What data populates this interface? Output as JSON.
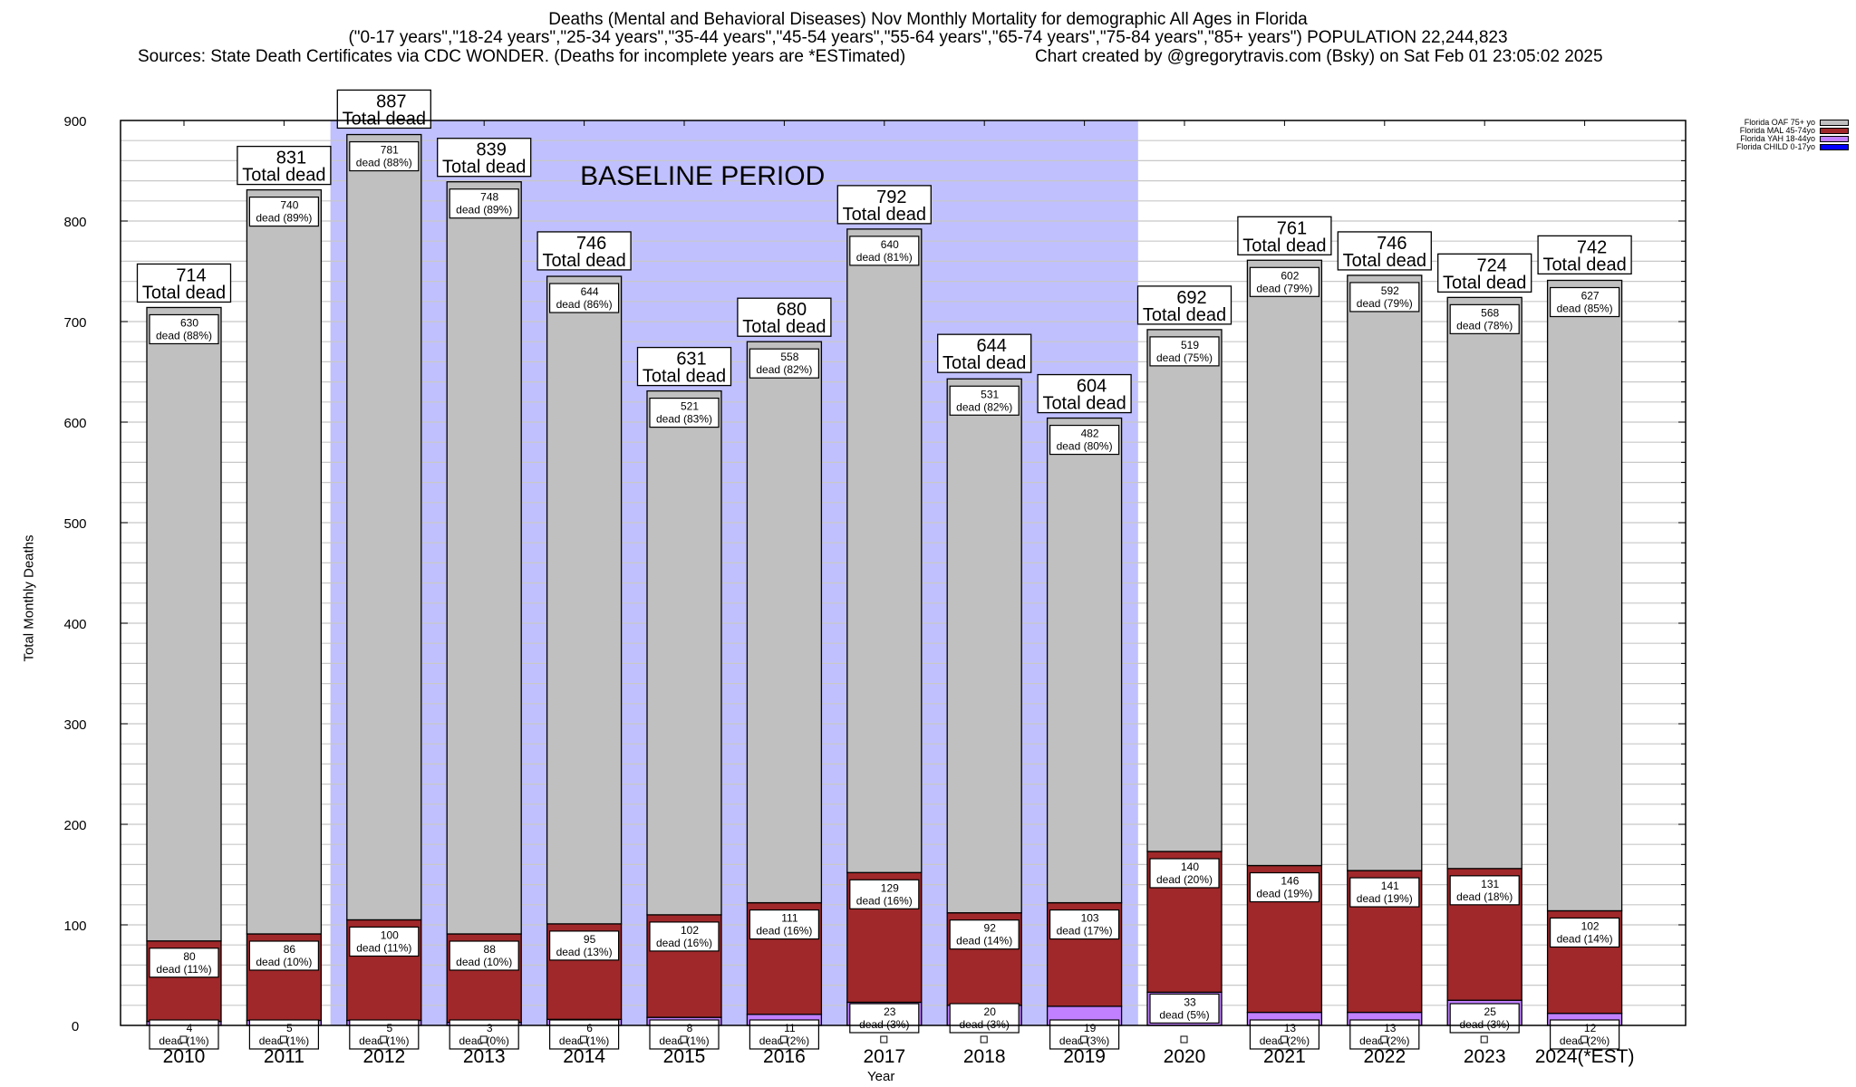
{
  "chart_data": {
    "type": "bar",
    "stacked": true,
    "title": "Deaths (Mental and Behavioral Diseases) Nov Monthly Mortality for demographic All Ages in Florida",
    "subtitle": "(\"0-17 years\",\"18-24 years\",\"25-34 years\",\"35-44 years\",\"45-54 years\",\"55-64 years\",\"65-74 years\",\"75-84 years\",\"85+ years\") POPULATION 22,244,823",
    "sources": "Sources: State Death Certificates via CDC WONDER. (Deaths for incomplete years are *ESTimated)",
    "credit": "Chart created by @gregorytravis.com (Bsky) on Sat Feb 01 23:05:02 2025",
    "xlabel": "Year",
    "ylabel": "Total Monthly Deaths",
    "ylim": [
      0,
      900
    ],
    "yticks": [
      0,
      100,
      200,
      300,
      400,
      500,
      600,
      700,
      800,
      900
    ],
    "minor_grid_step": 20,
    "grid": true,
    "legend_position": "top-right-outside",
    "annotation": "BASELINE PERIOD",
    "baseline_period": [
      "2012",
      "2019"
    ],
    "total_label_suffix": "Total dead",
    "segment_label_prefix": "dead",
    "categories": [
      "2010",
      "2011",
      "2012",
      "2013",
      "2014",
      "2015",
      "2016",
      "2017",
      "2018",
      "2019",
      "2020",
      "2021",
      "2022",
      "2023",
      "2024(*EST)"
    ],
    "totals": [
      714,
      831,
      887,
      839,
      746,
      631,
      680,
      792,
      644,
      604,
      692,
      761,
      746,
      724,
      742
    ],
    "series": [
      {
        "name": "Florida CHILD 0-17yo",
        "color": "#0000ff",
        "values": [
          0,
          0,
          0,
          0,
          0,
          0,
          0,
          0,
          0,
          0,
          0,
          0,
          0,
          0,
          0
        ],
        "pct": []
      },
      {
        "name": "Florida YAH 18-44yo",
        "color": "#c080ff",
        "values": [
          4,
          5,
          5,
          3,
          6,
          8,
          11,
          23,
          20,
          19,
          33,
          13,
          13,
          25,
          12
        ],
        "pct": [
          "1%",
          "1%",
          "1%",
          "0%",
          "1%",
          "1%",
          "2%",
          "3%",
          "3%",
          "3%",
          "5%",
          "2%",
          "2%",
          "3%",
          "2%"
        ]
      },
      {
        "name": "Florida MAL 45-74yo",
        "color": "#a0282a",
        "values": [
          80,
          86,
          100,
          88,
          95,
          102,
          111,
          129,
          92,
          103,
          140,
          146,
          141,
          131,
          102
        ],
        "pct": [
          "11%",
          "10%",
          "11%",
          "10%",
          "13%",
          "16%",
          "16%",
          "16%",
          "14%",
          "17%",
          "20%",
          "19%",
          "19%",
          "18%",
          "14%"
        ]
      },
      {
        "name": "Florida OAF 75+ yo",
        "color": "#c0c0c0",
        "values": [
          630,
          740,
          781,
          748,
          644,
          521,
          558,
          640,
          531,
          482,
          519,
          602,
          592,
          568,
          627
        ],
        "pct": [
          "88%",
          "89%",
          "88%",
          "89%",
          "86%",
          "83%",
          "82%",
          "81%",
          "82%",
          "80%",
          "75%",
          "79%",
          "79%",
          "78%",
          "85%"
        ]
      }
    ],
    "legend": [
      {
        "name": "Florida OAF 75+ yo",
        "color": "#c0c0c0"
      },
      {
        "name": "Florida MAL 45-74yo",
        "color": "#a0282a"
      },
      {
        "name": "Florida YAH 18-44yo",
        "color": "#c080ff"
      },
      {
        "name": "Florida CHILD 0-17yo",
        "color": "#0000ff"
      }
    ],
    "colors": {
      "baseline_shade": "#c0c0ff",
      "grid": "#c8c8c8"
    }
  }
}
